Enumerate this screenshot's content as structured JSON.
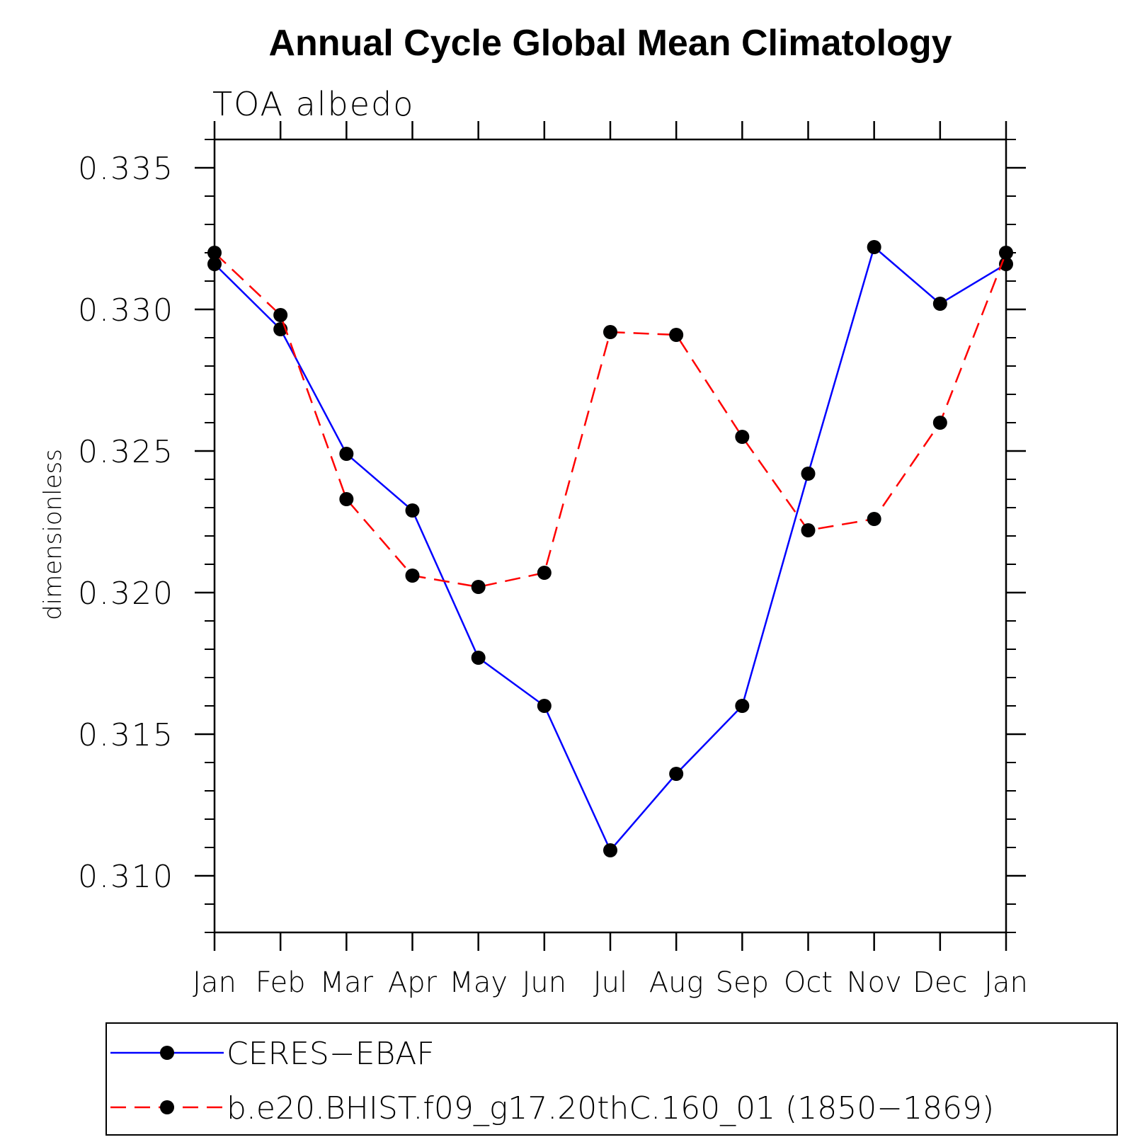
{
  "chart_data": {
    "type": "line",
    "title": "Annual Cycle Global Mean Climatology",
    "subtitle": "TOA albedo",
    "ylabel": "dimensionless",
    "xlabel": "",
    "categories": [
      "Jan",
      "Feb",
      "Mar",
      "Apr",
      "May",
      "Jun",
      "Jul",
      "Aug",
      "Sep",
      "Oct",
      "Nov",
      "Dec",
      "Jan"
    ],
    "ylim": [
      0.308,
      0.336
    ],
    "yticks": [
      0.31,
      0.315,
      0.32,
      0.325,
      0.33,
      0.335
    ],
    "ytick_labels": [
      "0.310",
      "0.315",
      "0.320",
      "0.325",
      "0.330",
      "0.335"
    ],
    "y_minor_step": 0.001,
    "grid": false,
    "legend_position": "bottom",
    "series": [
      {
        "name": "CERES−EBAF",
        "color": "#0000ff",
        "dash": "solid",
        "marker": "filled-circle",
        "values": [
          0.3316,
          0.3293,
          0.3249,
          0.3229,
          0.3177,
          0.316,
          0.3109,
          0.3136,
          0.316,
          0.3242,
          0.3322,
          0.3302,
          0.3316
        ]
      },
      {
        "name": "b.e20.BHIST.f09_g17.20thC.160_01 (1850−1869)",
        "color": "#ff0000",
        "dash": "dashed",
        "marker": "filled-circle",
        "values": [
          0.332,
          0.3298,
          0.3233,
          0.3206,
          0.3202,
          0.3207,
          0.3292,
          0.3291,
          0.3255,
          0.3222,
          0.3226,
          0.326,
          0.332
        ]
      }
    ]
  }
}
